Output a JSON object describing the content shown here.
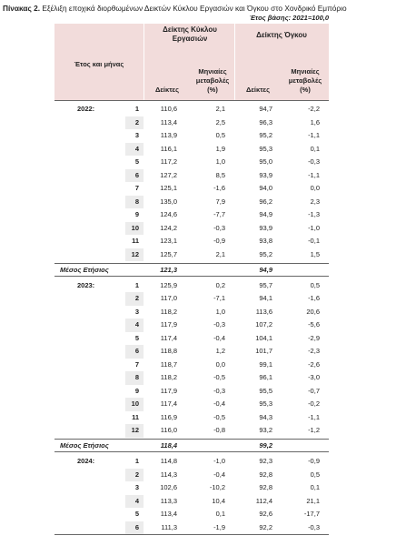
{
  "header": {
    "label": "Πίνακας 2.",
    "title": "Εξέλιξη εποχικά διορθωμένων Δεικτών Κύκλου Εργασιών και Όγκου στο Χονδρικό Εμπόριο",
    "base": "Έτος βάσης: 2021=100,0"
  },
  "table": {
    "columns": {
      "period": "Έτος και μήνας",
      "turnover": "Δείκτης Κύκλου Εργασιών",
      "volume": "Δείκτης Όγκου",
      "index": "Δείκτες",
      "change": "Μηνιαίες μεταβολές (%)",
      "index2": "Δείκτες",
      "change2": "Μηνιαίες μεταβολές (%)"
    },
    "sections": [
      {
        "year": "2022:",
        "rows": [
          [
            "1",
            "110,6",
            "2,1",
            "94,7",
            "-2,2"
          ],
          [
            "2",
            "113,4",
            "2,5",
            "96,3",
            "1,6"
          ],
          [
            "3",
            "113,9",
            "0,5",
            "95,2",
            "-1,1"
          ],
          [
            "4",
            "116,1",
            "1,9",
            "95,3",
            "0,1"
          ],
          [
            "5",
            "117,2",
            "1,0",
            "95,0",
            "-0,3"
          ],
          [
            "6",
            "127,2",
            "8,5",
            "93,9",
            "-1,1"
          ],
          [
            "7",
            "125,1",
            "-1,6",
            "94,0",
            "0,0"
          ],
          [
            "8",
            "135,0",
            "7,9",
            "96,2",
            "2,3"
          ],
          [
            "9",
            "124,6",
            "-7,7",
            "94,9",
            "-1,3"
          ],
          [
            "10",
            "124,2",
            "-0,3",
            "93,9",
            "-1,0"
          ],
          [
            "11",
            "123,1",
            "-0,9",
            "93,8",
            "-0,1"
          ],
          [
            "12",
            "125,7",
            "2,1",
            "95,2",
            "1,5"
          ]
        ],
        "average": [
          "Μέσος Ετήσιος",
          "121,3",
          "94,9"
        ]
      },
      {
        "year": "2023:",
        "rows": [
          [
            "1",
            "125,9",
            "0,2",
            "95,7",
            "0,5"
          ],
          [
            "2",
            "117,0",
            "-7,1",
            "94,1",
            "-1,6"
          ],
          [
            "3",
            "118,2",
            "1,0",
            "113,6",
            "20,6"
          ],
          [
            "4",
            "117,9",
            "-0,3",
            "107,2",
            "-5,6"
          ],
          [
            "5",
            "117,4",
            "-0,4",
            "104,1",
            "-2,9"
          ],
          [
            "6",
            "118,8",
            "1,2",
            "101,7",
            "-2,3"
          ],
          [
            "7",
            "118,7",
            "0,0",
            "99,1",
            "-2,6"
          ],
          [
            "8",
            "118,2",
            "-0,5",
            "96,1",
            "-3,0"
          ],
          [
            "9",
            "117,9",
            "-0,3",
            "95,5",
            "-0,7"
          ],
          [
            "10",
            "117,4",
            "-0,4",
            "95,3",
            "-0,2"
          ],
          [
            "11",
            "116,9",
            "-0,5",
            "94,3",
            "-1,1"
          ],
          [
            "12",
            "116,0",
            "-0,8",
            "93,2",
            "-1,2"
          ]
        ],
        "average": [
          "Μέσος Ετήσιος",
          "118,4",
          "99,2"
        ]
      },
      {
        "year": "2024:",
        "rows": [
          [
            "1",
            "114,8",
            "-1,0",
            "92,3",
            "-0,9"
          ],
          [
            "2",
            "114,3",
            "-0,4",
            "92,8",
            "0,5"
          ],
          [
            "3",
            "102,6",
            "-10,2",
            "92,8",
            "0,1"
          ],
          [
            "4",
            "113,3",
            "10,4",
            "112,4",
            "21,1"
          ],
          [
            "5",
            "113,4",
            "0,1",
            "92,6",
            "-17,7"
          ],
          [
            "6",
            "111,3",
            "-1,9",
            "92,2",
            "-0,3"
          ]
        ]
      }
    ]
  }
}
